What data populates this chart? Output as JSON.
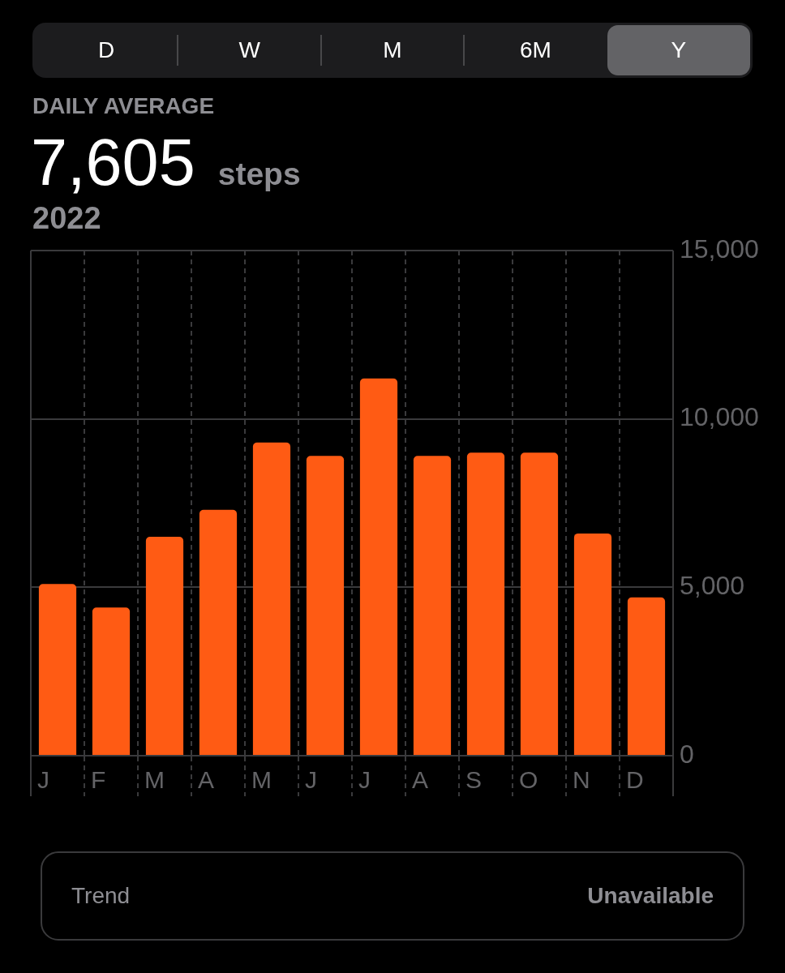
{
  "chart_data": {
    "type": "bar",
    "title": "DAILY AVERAGE",
    "subtitle": "2022",
    "annotations": [
      "D",
      "W",
      "M",
      "6M",
      "Y",
      "7,605",
      "steps",
      "Trend",
      "Unavailable"
    ],
    "categories": [
      "J",
      "F",
      "M",
      "A",
      "M",
      "J",
      "J",
      "A",
      "S",
      "O",
      "N",
      "D"
    ],
    "values": [
      5100,
      4400,
      6500,
      7300,
      9300,
      8900,
      11200,
      8900,
      9000,
      9000,
      6600,
      4700
    ],
    "color": "#ff5b14",
    "ylim": [
      0,
      15000
    ],
    "yticks": [
      0,
      {
        "value": 5000,
        "label": "5,000"
      },
      {
        "value": 10000,
        "label": "10,000"
      },
      {
        "value": 15000,
        "label": "15,000"
      }
    ],
    "grid": true
  }
}
